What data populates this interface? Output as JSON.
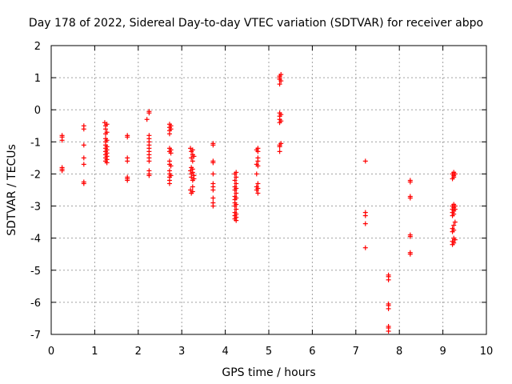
{
  "chart_data": {
    "type": "scatter",
    "title": "Day 178 of 2022, Sidereal Day-to-day VTEC variation (SDTVAR) for receiver abpo",
    "xlabel": "GPS time / hours",
    "ylabel": "SDTVAR / TECUs",
    "xlim": [
      0,
      10
    ],
    "ylim": [
      -7,
      2
    ],
    "xticks": [
      0,
      1,
      2,
      3,
      4,
      5,
      6,
      7,
      8,
      9,
      10
    ],
    "yticks": [
      -7,
      -6,
      -5,
      -4,
      -3,
      -2,
      -1,
      0,
      1,
      2
    ],
    "grid": true,
    "marker": "+",
    "color": "#ff0000",
    "points": [
      [
        0.25,
        -0.8
      ],
      [
        0.25,
        -0.85
      ],
      [
        0.25,
        -0.95
      ],
      [
        0.25,
        -1.8
      ],
      [
        0.25,
        -1.85
      ],
      [
        0.25,
        -1.9
      ],
      [
        0.75,
        -0.5
      ],
      [
        0.75,
        -0.6
      ],
      [
        0.75,
        -1.1
      ],
      [
        0.75,
        -1.5
      ],
      [
        0.75,
        -1.7
      ],
      [
        0.75,
        -2.25
      ],
      [
        0.75,
        -2.3
      ],
      [
        1.23,
        -0.4
      ],
      [
        1.25,
        -0.5
      ],
      [
        1.25,
        -0.6
      ],
      [
        1.25,
        -0.75
      ],
      [
        1.25,
        -0.9
      ],
      [
        1.25,
        -1.0
      ],
      [
        1.25,
        -1.1
      ],
      [
        1.25,
        -1.2
      ],
      [
        1.25,
        -1.3
      ],
      [
        1.25,
        -1.4
      ],
      [
        1.25,
        -1.5
      ],
      [
        1.25,
        -1.6
      ],
      [
        1.28,
        -0.45
      ],
      [
        1.28,
        -0.7
      ],
      [
        1.28,
        -0.95
      ],
      [
        1.28,
        -1.15
      ],
      [
        1.28,
        -1.25
      ],
      [
        1.28,
        -1.35
      ],
      [
        1.28,
        -1.45
      ],
      [
        1.28,
        -1.55
      ],
      [
        1.28,
        -1.65
      ],
      [
        1.75,
        -0.8
      ],
      [
        1.75,
        -0.85
      ],
      [
        1.75,
        -1.5
      ],
      [
        1.75,
        -1.6
      ],
      [
        1.75,
        -2.1
      ],
      [
        1.75,
        -2.15
      ],
      [
        1.75,
        -2.2
      ],
      [
        2.2,
        -0.3
      ],
      [
        2.25,
        -0.05
      ],
      [
        2.25,
        -0.1
      ],
      [
        2.25,
        -0.8
      ],
      [
        2.25,
        -0.9
      ],
      [
        2.25,
        -1.0
      ],
      [
        2.25,
        -1.1
      ],
      [
        2.25,
        -1.2
      ],
      [
        2.25,
        -1.3
      ],
      [
        2.25,
        -1.4
      ],
      [
        2.25,
        -1.5
      ],
      [
        2.25,
        -1.6
      ],
      [
        2.25,
        -1.9
      ],
      [
        2.25,
        -2.0
      ],
      [
        2.25,
        -2.05
      ],
      [
        2.72,
        -0.45
      ],
      [
        2.72,
        -0.55
      ],
      [
        2.72,
        -0.65
      ],
      [
        2.72,
        -0.75
      ],
      [
        2.72,
        -1.2
      ],
      [
        2.72,
        -1.3
      ],
      [
        2.72,
        -1.6
      ],
      [
        2.72,
        -1.7
      ],
      [
        2.72,
        -1.9
      ],
      [
        2.72,
        -2.0
      ],
      [
        2.72,
        -2.1
      ],
      [
        2.72,
        -2.2
      ],
      [
        2.72,
        -2.3
      ],
      [
        2.75,
        -0.5
      ],
      [
        2.75,
        -0.6
      ],
      [
        2.75,
        -1.25
      ],
      [
        2.75,
        -1.35
      ],
      [
        2.75,
        -1.75
      ],
      [
        2.75,
        -2.05
      ],
      [
        3.2,
        -1.2
      ],
      [
        3.2,
        -1.9
      ],
      [
        3.2,
        -2.5
      ],
      [
        3.22,
        -1.3
      ],
      [
        3.22,
        -1.5
      ],
      [
        3.22,
        -1.8
      ],
      [
        3.22,
        -2.0
      ],
      [
        3.22,
        -2.1
      ],
      [
        3.22,
        -2.6
      ],
      [
        3.25,
        -1.25
      ],
      [
        3.25,
        -1.4
      ],
      [
        3.25,
        -1.6
      ],
      [
        3.25,
        -1.85
      ],
      [
        3.25,
        -1.95
      ],
      [
        3.25,
        -2.2
      ],
      [
        3.25,
        -2.4
      ],
      [
        3.25,
        -2.55
      ],
      [
        3.28,
        -1.45
      ],
      [
        3.28,
        -2.05
      ],
      [
        3.28,
        -2.15
      ],
      [
        3.72,
        -1.05
      ],
      [
        3.72,
        -1.1
      ],
      [
        3.72,
        -1.6
      ],
      [
        3.72,
        -1.65
      ],
      [
        3.72,
        -2.0
      ],
      [
        3.72,
        -2.3
      ],
      [
        3.72,
        -2.4
      ],
      [
        3.72,
        -2.5
      ],
      [
        3.72,
        -2.75
      ],
      [
        3.72,
        -2.9
      ],
      [
        3.72,
        -3.0
      ],
      [
        4.22,
        -2.0
      ],
      [
        4.22,
        -2.2
      ],
      [
        4.22,
        -2.4
      ],
      [
        4.22,
        -2.5
      ],
      [
        4.22,
        -2.7
      ],
      [
        4.22,
        -2.8
      ],
      [
        4.22,
        -2.9
      ],
      [
        4.22,
        -3.0
      ],
      [
        4.22,
        -3.2
      ],
      [
        4.22,
        -3.3
      ],
      [
        4.22,
        -3.4
      ],
      [
        4.25,
        -1.95
      ],
      [
        4.25,
        -2.1
      ],
      [
        4.25,
        -2.3
      ],
      [
        4.25,
        -2.45
      ],
      [
        4.25,
        -2.6
      ],
      [
        4.25,
        -2.75
      ],
      [
        4.25,
        -2.95
      ],
      [
        4.25,
        -3.1
      ],
      [
        4.25,
        -3.25
      ],
      [
        4.25,
        -3.35
      ],
      [
        4.25,
        -3.45
      ],
      [
        4.72,
        -1.25
      ],
      [
        4.72,
        -1.7
      ],
      [
        4.72,
        -2.0
      ],
      [
        4.72,
        -2.4
      ],
      [
        4.72,
        -2.5
      ],
      [
        4.75,
        -1.2
      ],
      [
        4.75,
        -1.3
      ],
      [
        4.75,
        -1.5
      ],
      [
        4.75,
        -1.6
      ],
      [
        4.75,
        -1.75
      ],
      [
        4.75,
        -2.3
      ],
      [
        4.75,
        -2.45
      ],
      [
        4.75,
        -2.6
      ],
      [
        5.25,
        1.05
      ],
      [
        5.25,
        1.0
      ],
      [
        5.25,
        0.95
      ],
      [
        5.25,
        0.8
      ],
      [
        5.25,
        -0.1
      ],
      [
        5.25,
        -0.2
      ],
      [
        5.25,
        -0.3
      ],
      [
        5.25,
        -0.4
      ],
      [
        5.25,
        -1.1
      ],
      [
        5.25,
        -1.15
      ],
      [
        5.25,
        -1.3
      ],
      [
        5.28,
        1.1
      ],
      [
        5.28,
        0.9
      ],
      [
        5.28,
        -0.15
      ],
      [
        5.28,
        -0.35
      ],
      [
        5.28,
        -1.05
      ],
      [
        7.22,
        -1.6
      ],
      [
        7.22,
        -3.2
      ],
      [
        7.22,
        -3.3
      ],
      [
        7.22,
        -3.55
      ],
      [
        7.22,
        -4.3
      ],
      [
        7.75,
        -5.15
      ],
      [
        7.75,
        -5.2
      ],
      [
        7.75,
        -5.3
      ],
      [
        7.75,
        -6.05
      ],
      [
        7.75,
        -6.1
      ],
      [
        7.75,
        -6.2
      ],
      [
        7.75,
        -6.75
      ],
      [
        7.75,
        -6.8
      ],
      [
        7.75,
        -6.9
      ],
      [
        8.25,
        -2.2
      ],
      [
        8.25,
        -2.25
      ],
      [
        8.25,
        -2.7
      ],
      [
        8.25,
        -2.75
      ],
      [
        8.25,
        -3.9
      ],
      [
        8.25,
        -3.95
      ],
      [
        8.25,
        -4.45
      ],
      [
        8.25,
        -4.5
      ],
      [
        9.22,
        -2.0
      ],
      [
        9.22,
        -2.15
      ],
      [
        9.22,
        -3.0
      ],
      [
        9.22,
        -3.1
      ],
      [
        9.22,
        -3.2
      ],
      [
        9.22,
        -3.3
      ],
      [
        9.22,
        -3.7
      ],
      [
        9.22,
        -3.8
      ],
      [
        9.22,
        -4.1
      ],
      [
        9.22,
        -4.2
      ],
      [
        9.25,
        -1.95
      ],
      [
        9.25,
        -2.05
      ],
      [
        9.25,
        -2.1
      ],
      [
        9.25,
        -2.95
      ],
      [
        9.25,
        -3.05
      ],
      [
        9.25,
        -3.15
      ],
      [
        9.25,
        -3.25
      ],
      [
        9.25,
        -3.6
      ],
      [
        9.25,
        -3.75
      ],
      [
        9.25,
        -4.0
      ],
      [
        9.25,
        -4.15
      ],
      [
        9.28,
        -2.0
      ],
      [
        9.28,
        -3.0
      ],
      [
        9.28,
        -3.1
      ],
      [
        9.28,
        -3.5
      ],
      [
        9.28,
        -4.05
      ]
    ]
  }
}
